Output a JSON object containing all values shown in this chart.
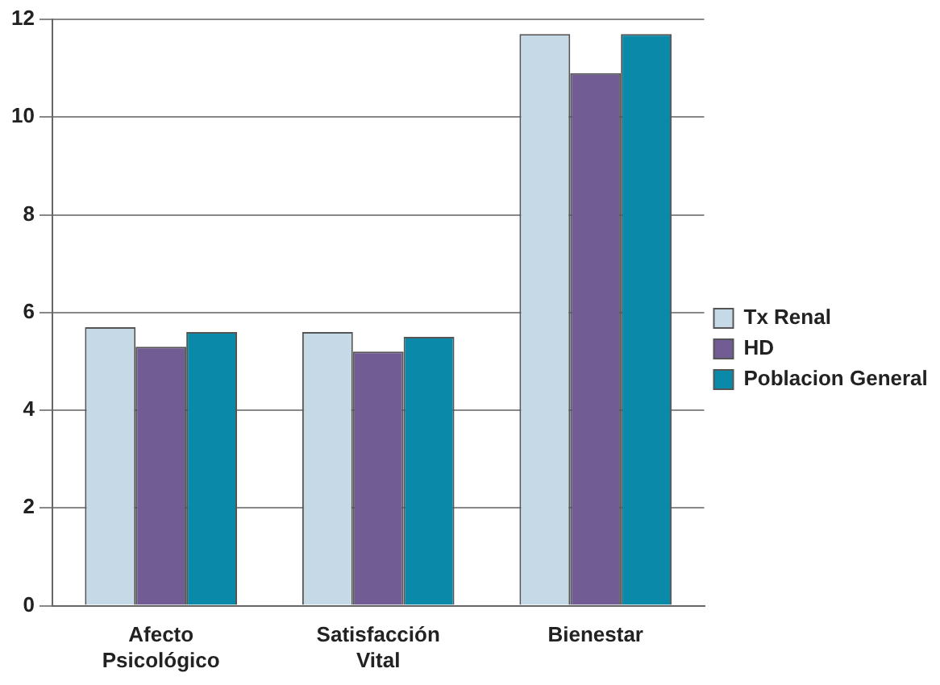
{
  "chart_data": {
    "type": "bar",
    "categories": [
      "Afecto Psicológico",
      "Satisfacción Vital",
      "Bienestar"
    ],
    "series": [
      {
        "name": "Tx Renal",
        "color": "#c5d9e6",
        "values": [
          5.7,
          5.6,
          11.7
        ]
      },
      {
        "name": "HD",
        "color": "#715c94",
        "values": [
          5.3,
          5.2,
          10.9
        ]
      },
      {
        "name": "Poblacion General",
        "color": "#0a8aa8",
        "values": [
          5.6,
          5.5,
          11.7
        ]
      }
    ],
    "ylim": [
      0,
      12
    ],
    "yticks": [
      0,
      2,
      4,
      6,
      8,
      10,
      12
    ],
    "grid": "y",
    "legend": "right"
  }
}
